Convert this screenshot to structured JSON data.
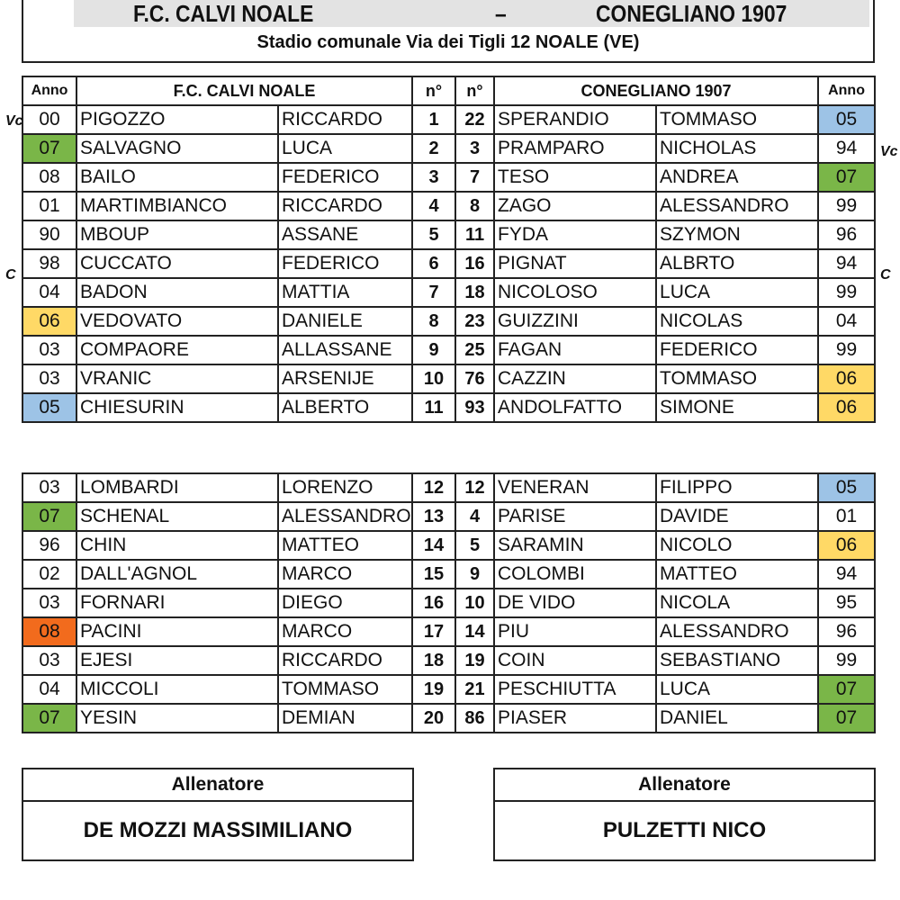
{
  "header": {
    "home": "F.C. CALVI NOALE",
    "dash": "–",
    "away": "CONEGLIANO 1907",
    "venue": "Stadio comunale Via dei Tigli 12 NOALE (VE)"
  },
  "table_header": {
    "anno_left": "Anno",
    "home": "F.C. CALVI NOALE",
    "num_left": "n°",
    "num_right": "n°",
    "away": "CONEGLIANO 1907",
    "anno_right": "Anno"
  },
  "colors": {
    "green": "#7ab648",
    "blue": "#9dc3e6",
    "yellow": "#ffd966",
    "orange": "#f26b1d"
  },
  "starters": [
    {
      "h_anno": "00",
      "h_sur": "PIGOZZO",
      "h_name": "RICCARDO",
      "h_num": "1",
      "a_num": "22",
      "a_sur": "SPERANDIO",
      "a_name": "TOMMASO",
      "a_anno": "05",
      "h_col": "",
      "a_col": "blue",
      "h_role": "Vc",
      "a_role": ""
    },
    {
      "h_anno": "07",
      "h_sur": "SALVAGNO",
      "h_name": "LUCA",
      "h_num": "2",
      "a_num": "3",
      "a_sur": "PRAMPARO",
      "a_name": "NICHOLAS",
      "a_anno": "94",
      "h_col": "green",
      "a_col": "",
      "h_role": "",
      "a_role": "Vc"
    },
    {
      "h_anno": "08",
      "h_sur": "BAILO",
      "h_name": "FEDERICO",
      "h_num": "3",
      "a_num": "7",
      "a_sur": "TESO",
      "a_name": "ANDREA",
      "a_anno": "07",
      "h_col": "",
      "a_col": "green",
      "h_role": "",
      "a_role": ""
    },
    {
      "h_anno": "01",
      "h_sur": "MARTIMBIANCO",
      "h_name": "RICCARDO",
      "h_num": "4",
      "a_num": "8",
      "a_sur": "ZAGO",
      "a_name": "ALESSANDRO",
      "a_anno": "99",
      "h_col": "",
      "a_col": "",
      "h_role": "",
      "a_role": ""
    },
    {
      "h_anno": "90",
      "h_sur": "MBOUP",
      "h_name": "ASSANE",
      "h_num": "5",
      "a_num": "11",
      "a_sur": "FYDA",
      "a_name": "SZYMON",
      "a_anno": "96",
      "h_col": "",
      "a_col": "",
      "h_role": "",
      "a_role": ""
    },
    {
      "h_anno": "98",
      "h_sur": "CUCCATO",
      "h_name": "FEDERICO",
      "h_num": "6",
      "a_num": "16",
      "a_sur": "PIGNAT",
      "a_name": "ALBRTO",
      "a_anno": "94",
      "h_col": "",
      "a_col": "",
      "h_role": "C",
      "a_role": "C"
    },
    {
      "h_anno": "04",
      "h_sur": "BADON",
      "h_name": "MATTIA",
      "h_num": "7",
      "a_num": "18",
      "a_sur": "NICOLOSO",
      "a_name": "LUCA",
      "a_anno": "99",
      "h_col": "",
      "a_col": "",
      "h_role": "",
      "a_role": ""
    },
    {
      "h_anno": "06",
      "h_sur": "VEDOVATO",
      "h_name": "DANIELE",
      "h_num": "8",
      "a_num": "23",
      "a_sur": "GUIZZINI",
      "a_name": "NICOLAS",
      "a_anno": "04",
      "h_col": "yellow",
      "a_col": "",
      "h_role": "",
      "a_role": ""
    },
    {
      "h_anno": "03",
      "h_sur": "COMPAORE",
      "h_name": "ALLASSANE",
      "h_num": "9",
      "a_num": "25",
      "a_sur": "FAGAN",
      "a_name": "FEDERICO",
      "a_anno": "99",
      "h_col": "",
      "a_col": "",
      "h_role": "",
      "a_role": ""
    },
    {
      "h_anno": "03",
      "h_sur": "VRANIC",
      "h_name": "ARSENIJE",
      "h_num": "10",
      "a_num": "76",
      "a_sur": "CAZZIN",
      "a_name": "TOMMASO",
      "a_anno": "06",
      "h_col": "",
      "a_col": "yellow",
      "h_role": "",
      "a_role": ""
    },
    {
      "h_anno": "05",
      "h_sur": "CHIESURIN",
      "h_name": "ALBERTO",
      "h_num": "11",
      "a_num": "93",
      "a_sur": "ANDOLFATTO",
      "a_name": "SIMONE",
      "a_anno": "06",
      "h_col": "blue",
      "a_col": "yellow",
      "h_role": "",
      "a_role": ""
    }
  ],
  "subs": [
    {
      "h_anno": "03",
      "h_sur": "LOMBARDI",
      "h_name": "LORENZO",
      "h_num": "12",
      "a_num": "12",
      "a_sur": "VENERAN",
      "a_name": "FILIPPO",
      "a_anno": "05",
      "h_col": "",
      "a_col": "blue"
    },
    {
      "h_anno": "07",
      "h_sur": "SCHENAL",
      "h_name": "ALESSANDRO",
      "h_num": "13",
      "a_num": "4",
      "a_sur": "PARISE",
      "a_name": "DAVIDE",
      "a_anno": "01",
      "h_col": "green",
      "a_col": ""
    },
    {
      "h_anno": "96",
      "h_sur": "CHIN",
      "h_name": "MATTEO",
      "h_num": "14",
      "a_num": "5",
      "a_sur": "SARAMIN",
      "a_name": "NICOLO",
      "a_anno": "06",
      "h_col": "",
      "a_col": "yellow"
    },
    {
      "h_anno": "02",
      "h_sur": "DALL'AGNOL",
      "h_name": "MARCO",
      "h_num": "15",
      "a_num": "9",
      "a_sur": "COLOMBI",
      "a_name": "MATTEO",
      "a_anno": "94",
      "h_col": "",
      "a_col": ""
    },
    {
      "h_anno": "03",
      "h_sur": "FORNARI",
      "h_name": "DIEGO",
      "h_num": "16",
      "a_num": "10",
      "a_sur": "DE VIDO",
      "a_name": "NICOLA",
      "a_anno": "95",
      "h_col": "",
      "a_col": ""
    },
    {
      "h_anno": "08",
      "h_sur": "PACINI",
      "h_name": "MARCO",
      "h_num": "17",
      "a_num": "14",
      "a_sur": "PIU",
      "a_name": "ALESSANDRO",
      "a_anno": "96",
      "h_col": "orange",
      "a_col": ""
    },
    {
      "h_anno": "03",
      "h_sur": "EJESI",
      "h_name": "RICCARDO",
      "h_num": "18",
      "a_num": "19",
      "a_sur": "COIN",
      "a_name": "SEBASTIANO",
      "a_anno": "99",
      "h_col": "",
      "a_col": ""
    },
    {
      "h_anno": "04",
      "h_sur": "MICCOLI",
      "h_name": "TOMMASO",
      "h_num": "19",
      "a_num": "21",
      "a_sur": "PESCHIUTTA",
      "a_name": "LUCA",
      "a_anno": "07",
      "h_col": "",
      "a_col": "green"
    },
    {
      "h_anno": "07",
      "h_sur": "YESIN",
      "h_name": "DEMIAN",
      "h_num": "20",
      "a_num": "86",
      "a_sur": "PIASER",
      "a_name": "DANIEL",
      "a_anno": "07",
      "h_col": "green",
      "a_col": "green"
    }
  ],
  "coaches": {
    "label_home": "Allenatore",
    "home": "DE MOZZI MASSIMILIANO",
    "label_away": "Allenatore",
    "away": "PULZETTI NICO"
  }
}
